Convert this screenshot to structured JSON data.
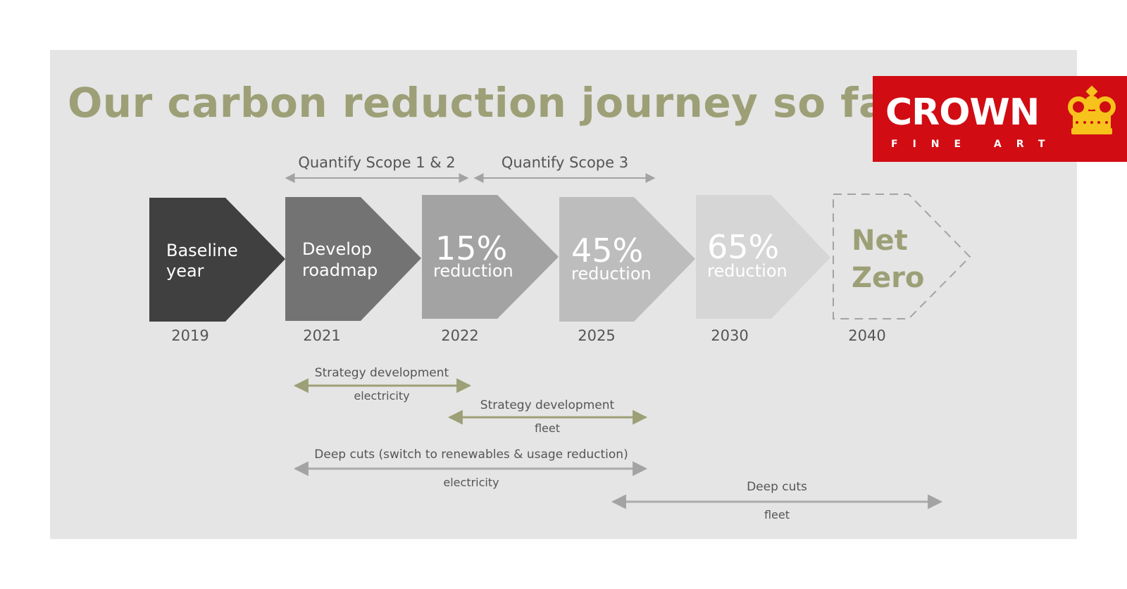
{
  "title": "Our carbon reduction journey so far",
  "logo": {
    "word": "CROWN",
    "sub": "FINE ART",
    "bg_color": "#d10c13",
    "crown_color": "#f6c21b"
  },
  "top_ranges": [
    {
      "label": "Quantify Scope 1 & 2"
    },
    {
      "label": "Quantify Scope 3"
    }
  ],
  "steps": [
    {
      "line1": "Baseline",
      "line2": "year",
      "year": "2019",
      "color": "#404040"
    },
    {
      "line1": "Develop",
      "line2": "roadmap",
      "year": "2021",
      "color": "#737373"
    },
    {
      "line1": "15%",
      "line2": "reduction",
      "year": "2022",
      "color": "#a3a3a3"
    },
    {
      "line1": "45%",
      "line2": "reduction",
      "year": "2025",
      "color": "#bdbdbd"
    },
    {
      "line1": "65%",
      "line2": "reduction",
      "year": "2030",
      "color": "#d6d6d6"
    },
    {
      "line1": "Net",
      "line2": "Zero",
      "year": "2040",
      "color": "#9da077"
    }
  ],
  "timeline_bars": [
    {
      "label": "Strategy development",
      "sub": "electricity",
      "color": "#9da077"
    },
    {
      "label": "Strategy development",
      "sub": "fleet",
      "color": "#9da077"
    },
    {
      "label": "Deep cuts (switch to renewables & usage reduction)",
      "sub": "electricity",
      "color": "#ababab"
    },
    {
      "label": "Deep cuts",
      "sub": "fleet",
      "color": "#ababab"
    }
  ],
  "colors": {
    "accent": "#9da077",
    "panel": "#e5e5e5",
    "text": "#555555"
  }
}
